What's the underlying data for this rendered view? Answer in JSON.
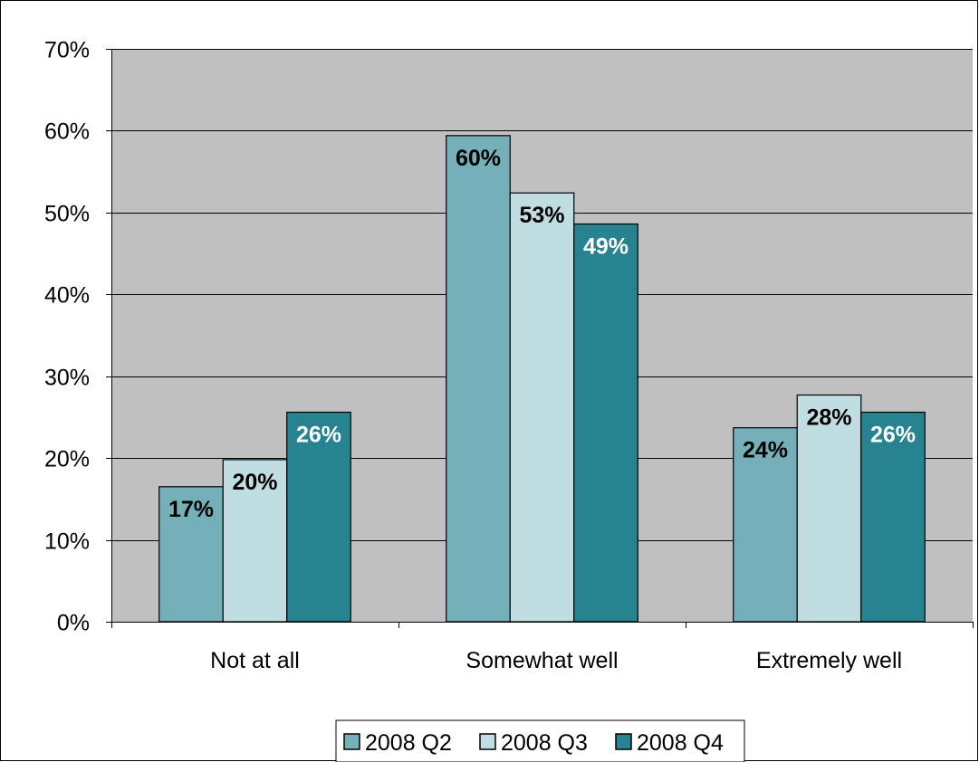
{
  "chart_data": {
    "type": "bar",
    "title": "",
    "xlabel": "",
    "ylabel": "",
    "categories": [
      "Not at all",
      "Somewhat well",
      "Extremely well"
    ],
    "series": [
      {
        "name": "2008 Q2",
        "values": [
          17,
          60,
          24
        ],
        "labels": [
          "17%",
          "60%",
          "24%"
        ],
        "color": "#75AFBA",
        "label_color": "#000000"
      },
      {
        "name": "2008 Q3",
        "values": [
          20,
          53,
          28
        ],
        "labels": [
          "20%",
          "53%",
          "28%"
        ],
        "color": "#C0DEE2",
        "label_color": "#000000"
      },
      {
        "name": "2008 Q4",
        "values": [
          26,
          49,
          26
        ],
        "labels": [
          "26%",
          "49%",
          "26%"
        ],
        "color": "#26838F",
        "label_color": "#FFFFFF"
      }
    ],
    "bar_values_as_drawn": [
      [
        16.5,
        59.4,
        23.7
      ],
      [
        19.8,
        52.4,
        27.7
      ],
      [
        25.6,
        48.6,
        25.6
      ]
    ],
    "ylim": [
      0,
      70
    ],
    "yticks": [
      0,
      10,
      20,
      30,
      40,
      50,
      60,
      70
    ],
    "ytick_labels": [
      "0%",
      "10%",
      "20%",
      "30%",
      "40%",
      "50%",
      "60%",
      "70%"
    ],
    "grid": true,
    "plot_background": "#C0C0C0",
    "legend_position": "bottom"
  }
}
